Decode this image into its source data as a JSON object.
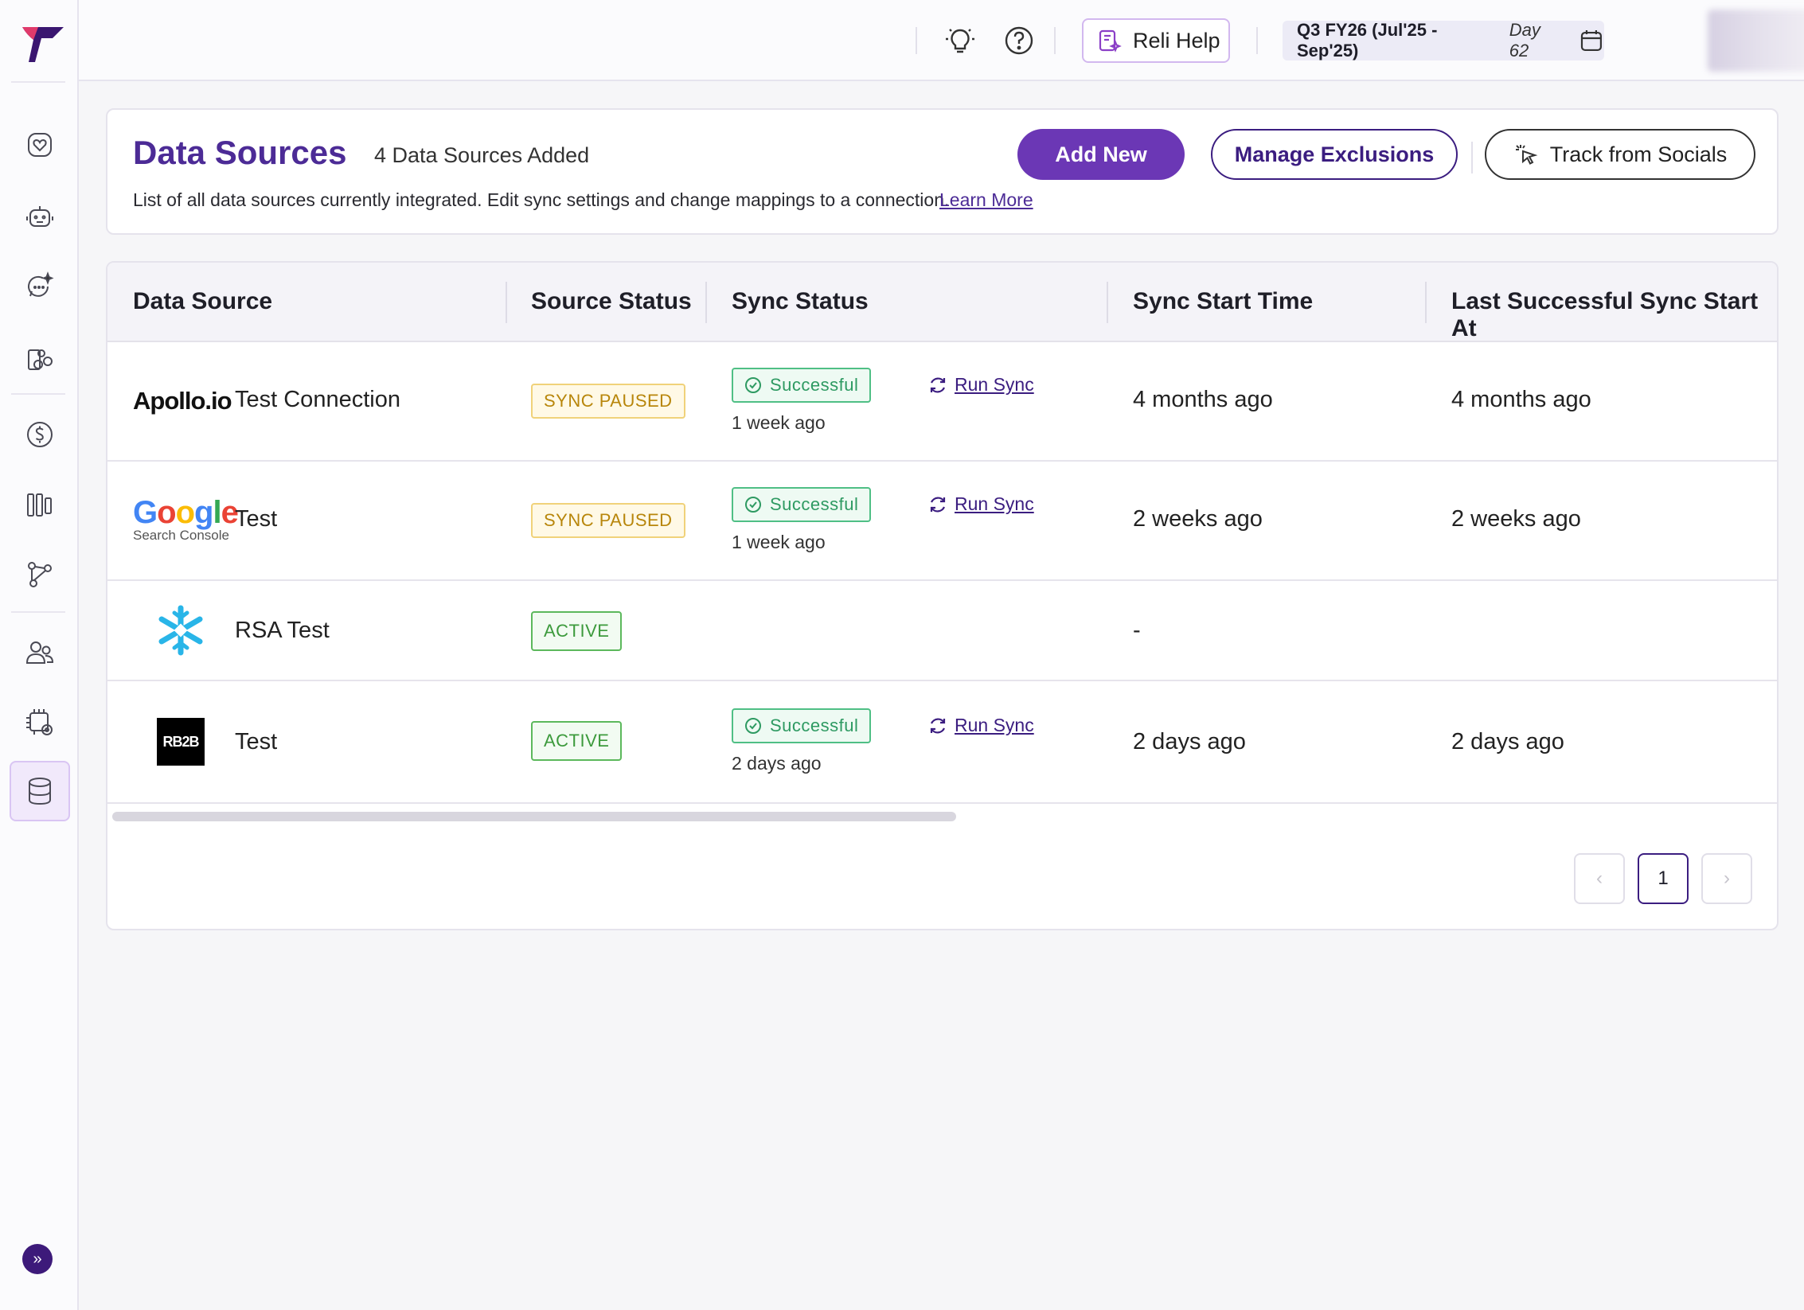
{
  "topbar": {
    "reli_help_label": "Reli Help",
    "quarter_label": "Q3 FY26 (Jul'25 - Sep'25)",
    "quarter_day": "Day 62"
  },
  "header": {
    "title": "Data Sources",
    "count_label": "4 Data Sources Added",
    "description": "List of all data sources currently integrated. Edit sync settings and change mappings to a connection.",
    "learn_more": "Learn More",
    "add_new": "Add New",
    "manage_exclusions": "Manage Exclusions",
    "track_from_socials": "Track from Socials"
  },
  "table": {
    "columns": [
      "Data Source",
      "Source Status",
      "Sync Status",
      "Sync Start Time",
      "Last Successful Sync Start At"
    ],
    "rows": [
      {
        "logo_text": "Apollo.io",
        "name": "Test Connection",
        "source_status": "SYNC PAUSED",
        "sync_status": "Successful",
        "sync_time": "1 week ago",
        "run_sync": "Run Sync",
        "sync_start_time": "4 months ago",
        "last_successful": "4 months ago"
      },
      {
        "logo_text": "Google",
        "logo_subtext": "Search Console",
        "name": "Test",
        "source_status": "SYNC PAUSED",
        "sync_status": "Successful",
        "sync_time": "1 week ago",
        "run_sync": "Run Sync",
        "sync_start_time": "2 weeks ago",
        "last_successful": "2 weeks ago"
      },
      {
        "logo_icon": "snowflake-icon",
        "name": "RSA Test",
        "source_status": "ACTIVE",
        "sync_start_time": "-"
      },
      {
        "logo_text": "RB2B",
        "name": "Test",
        "source_status": "ACTIVE",
        "sync_status": "Successful",
        "sync_time": "2 days ago",
        "run_sync": "Run Sync",
        "sync_start_time": "2 days ago",
        "last_successful": "2 days ago"
      }
    ]
  },
  "pagination": {
    "current_page": "1",
    "prev": "‹",
    "next": "›"
  },
  "colors": {
    "brand_purple": "#4c2b96",
    "primary_button": "#6b37b5",
    "paused": "#b8860b",
    "active": "#3c9a3c",
    "success": "#2e9a62"
  }
}
